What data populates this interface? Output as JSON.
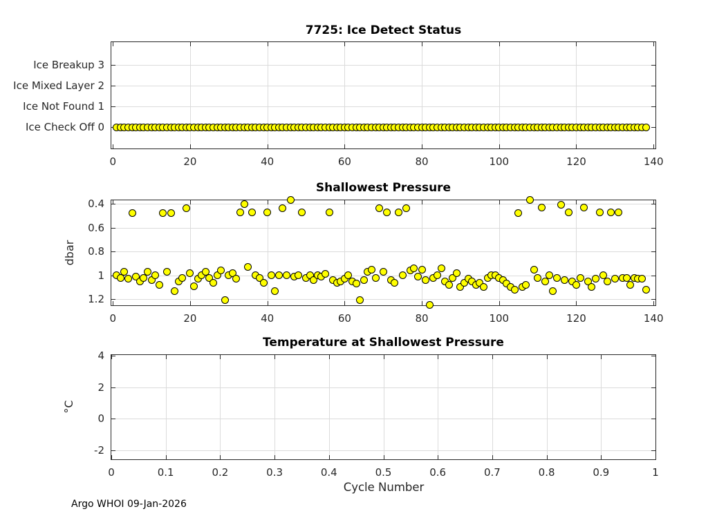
{
  "figure": {
    "footer": "Argo WHOI 09-Jan-2026",
    "background_color": "#ffffff",
    "axis_color": "#262626",
    "grid_color": "#dbdbdb",
    "marker": {
      "fill": "#ffff00",
      "edge": "#000000",
      "diameter": 11
    }
  },
  "chart_data": [
    {
      "type": "scatter",
      "title": "7725: Ice Detect Status",
      "xlabel": "",
      "ylabel": "",
      "xlim": [
        -0.4,
        140.5
      ],
      "ylim": [
        4.1,
        -1.02
      ],
      "xticks": {
        "values": [
          0,
          20,
          40,
          60,
          80,
          100,
          120,
          140
        ],
        "labels": [
          "0",
          "20",
          "40",
          "60",
          "80",
          "100",
          "120",
          "140"
        ]
      },
      "yticks": {
        "values": [
          3,
          2,
          1,
          0
        ],
        "labels": [
          "Ice Breakup 3",
          "Ice Mixed Layer 2",
          "Ice Not Found 1",
          "Ice Check Off 0"
        ]
      },
      "xgrid": [
        20,
        40,
        60,
        80,
        100,
        120
      ],
      "ygrid": [
        1,
        2,
        3
      ],
      "grid": "on",
      "points": {
        "x_start": 1,
        "x_end": 138,
        "y_constant": 0
      },
      "note": "one marker per cycle 1-138, all at status 0 (Ice Check Off)"
    },
    {
      "type": "scatter",
      "title": "Shallowest Pressure",
      "xlabel": "",
      "ylabel": "dbar",
      "y_axis_reversed": true,
      "xlim": [
        -0.4,
        140.5
      ],
      "ylim": [
        0.371,
        1.251
      ],
      "xticks": {
        "values": [
          0,
          20,
          40,
          60,
          80,
          100,
          120,
          140
        ],
        "labels": [
          "0",
          "20",
          "40",
          "60",
          "80",
          "100",
          "120",
          "140"
        ]
      },
      "yticks": {
        "values": [
          0.4,
          0.6,
          0.8,
          1,
          1.2
        ],
        "labels": [
          "0.4",
          "0.6",
          "0.8",
          "1",
          "1.2"
        ]
      },
      "xgrid": [
        20,
        40,
        60,
        80,
        100,
        120
      ],
      "ygrid": [
        0.4,
        0.6,
        0.8,
        1,
        1.2
      ],
      "grid": "on",
      "points": {
        "x_start": 1,
        "values": [
          1.0,
          1.02,
          0.97,
          1.03,
          0.48,
          1.01,
          1.05,
          1.02,
          0.97,
          1.04,
          1.0,
          1.08,
          0.48,
          0.97,
          0.48,
          1.13,
          1.05,
          1.02,
          0.44,
          0.98,
          1.09,
          1.03,
          1.0,
          0.97,
          1.02,
          1.06,
          1.0,
          0.96,
          1.21,
          1.0,
          0.98,
          1.03,
          0.47,
          0.4,
          0.93,
          0.47,
          1.0,
          1.02,
          1.06,
          0.47,
          1.0,
          1.13,
          1.0,
          0.44,
          1.0,
          0.37,
          1.01,
          1.0,
          0.47,
          1.02,
          1.0,
          1.04,
          1.0,
          1.01,
          0.99,
          0.47,
          1.04,
          1.06,
          1.05,
          1.03,
          1.0,
          1.05,
          1.07,
          1.21,
          1.04,
          0.97,
          0.95,
          1.02,
          0.44,
          0.97,
          0.47,
          1.04,
          1.06,
          0.47,
          1.0,
          0.44,
          0.96,
          0.94,
          1.01,
          0.95,
          1.04,
          1.25,
          1.02,
          1.0,
          0.94,
          1.05,
          1.08,
          1.02,
          0.98,
          1.1,
          1.06,
          1.03,
          1.05,
          1.08,
          1.06,
          1.1,
          1.02,
          1.0,
          1.0,
          1.02,
          1.04,
          1.07,
          1.1,
          1.12,
          0.48,
          1.1,
          1.08,
          0.37,
          0.95,
          1.02,
          0.43,
          1.05,
          1.0,
          1.13,
          1.02,
          0.41,
          1.04,
          0.47,
          1.05,
          1.08,
          1.02,
          0.43,
          1.05,
          1.1,
          1.03,
          0.47,
          1.0,
          1.05,
          0.47,
          1.03,
          0.47,
          1.02,
          1.02,
          1.08,
          1.02,
          1.03,
          1.03,
          1.12
        ]
      }
    },
    {
      "type": "scatter",
      "title": "Temperature at Shallowest Pressure",
      "xlabel": "Cycle Number",
      "ylabel": "°C",
      "xlim": [
        0,
        1
      ],
      "ylim": [
        4.04,
        -2.56
      ],
      "xticks": {
        "values": [
          0,
          0.1,
          0.2,
          0.3,
          0.4,
          0.5,
          0.6,
          0.7,
          0.8,
          0.9,
          1
        ],
        "labels": [
          "0",
          "0.1",
          "0.2",
          "0.3",
          "0.4",
          "0.5",
          "0.6",
          "0.7",
          "0.8",
          "0.9",
          "1"
        ]
      },
      "yticks": {
        "values": [
          4,
          2,
          0,
          -2
        ],
        "labels": [
          "4",
          "2",
          "0",
          "-2"
        ]
      },
      "xgrid": [
        0.1,
        0.2,
        0.3,
        0.4,
        0.5,
        0.6,
        0.7,
        0.8,
        0.9
      ],
      "ygrid": [
        2,
        0,
        -2
      ],
      "grid": "on",
      "points": {
        "x": [],
        "y": []
      },
      "note": "empty axes - no data plotted"
    }
  ]
}
